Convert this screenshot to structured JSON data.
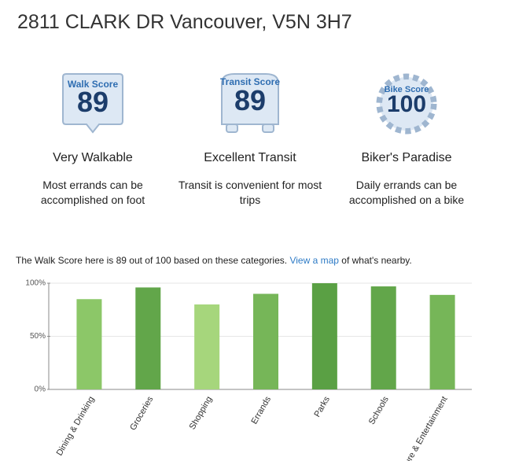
{
  "address": "2811 CLARK DR Vancouver, V5N 3H7",
  "scores": [
    {
      "label": "Walk Score",
      "score": "89",
      "title": "Very Walkable",
      "description": "Most errands can be accomplished on foot"
    },
    {
      "label": "Transit Score",
      "score": "89",
      "title": "Excellent Transit",
      "description": "Transit is convenient for most trips"
    },
    {
      "label": "Bike Score",
      "score": "100",
      "title": "Biker's Paradise",
      "description": "Daily errands can be accomplished on a bike"
    }
  ],
  "intro": {
    "before": "The Walk Score here is 89 out of 100 based on these categories.",
    "link": "View a map",
    "after": "of what's nearby."
  },
  "chart_data": {
    "type": "bar",
    "categories": [
      "Dining & Drinking",
      "Groceries",
      "Shopping",
      "Errands",
      "Parks",
      "Schools",
      "Culture & Entertainment"
    ],
    "values": [
      85,
      96,
      80,
      90,
      100,
      97,
      89
    ],
    "colors": [
      "#8cc768",
      "#62a64a",
      "#a6d67c",
      "#76b658",
      "#5aa044",
      "#62a64a",
      "#76b658"
    ],
    "ylim": [
      0,
      100
    ],
    "yticks": [
      {
        "value": 0,
        "label": "0%"
      },
      {
        "value": 50,
        "label": "50%"
      },
      {
        "value": 100,
        "label": "100%"
      }
    ],
    "grid": true
  }
}
